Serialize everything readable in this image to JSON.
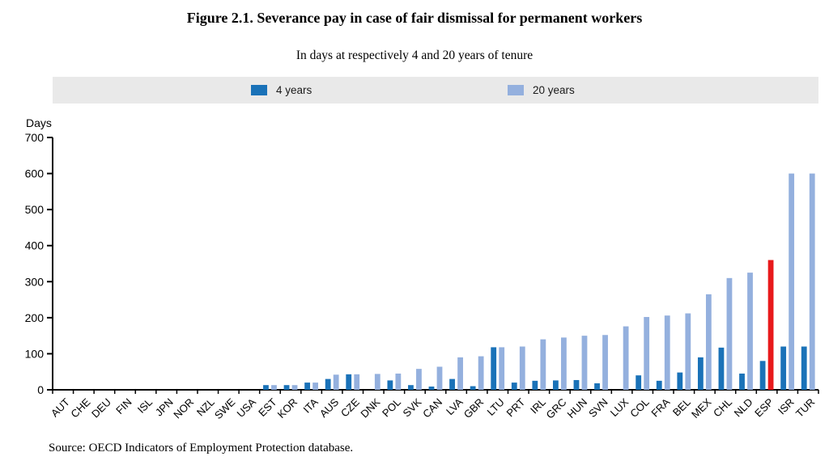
{
  "title": "Figure 2.1. Severance pay in case of fair dismissal for permanent workers",
  "subtitle": "In days at respectively 4 and 20 years of tenure",
  "source": "Source: OECD Indicators of Employment Protection database.",
  "chart_data": {
    "type": "bar",
    "unit_label": "Days",
    "ylim": [
      0,
      700
    ],
    "ytick_step": 100,
    "grid": false,
    "legend_position": "top-band",
    "legend": [
      {
        "name": "4 years",
        "color": "#1a72b8"
      },
      {
        "name": "20 years",
        "color": "#94b0de"
      }
    ],
    "highlight": {
      "country": "ESP",
      "series": "20 years",
      "color": "#e81a1c"
    },
    "categories": [
      "AUT",
      "CHE",
      "DEU",
      "FIN",
      "ISL",
      "JPN",
      "NOR",
      "NZL",
      "SWE",
      "USA",
      "EST",
      "KOR",
      "ITA",
      "AUS",
      "CZE",
      "DNK",
      "POL",
      "SVK",
      "CAN",
      "LVA",
      "GBR",
      "LTU",
      "PRT",
      "IRL",
      "GRC",
      "HUN",
      "SVN",
      "LUX",
      "COL",
      "FRA",
      "BEL",
      "MEX",
      "CHL",
      "NLD",
      "ESP",
      "ISR",
      "TUR"
    ],
    "series": [
      {
        "name": "4 years",
        "values": [
          0,
          0,
          0,
          0,
          0,
          0,
          0,
          0,
          0,
          0,
          13,
          13,
          20,
          30,
          43,
          0,
          26,
          13,
          9,
          30,
          10,
          118,
          20,
          25,
          26,
          27,
          18,
          0,
          40,
          25,
          48,
          90,
          117,
          45,
          80,
          120,
          120
        ]
      },
      {
        "name": "20 years",
        "values": [
          0,
          0,
          0,
          0,
          0,
          0,
          0,
          0,
          0,
          0,
          13,
          13,
          20,
          42,
          43,
          44,
          45,
          58,
          64,
          90,
          93,
          118,
          120,
          140,
          145,
          150,
          152,
          176,
          202,
          206,
          212,
          265,
          310,
          325,
          360,
          600,
          600
        ]
      }
    ]
  },
  "colors": {
    "axis": "#000000",
    "legend_band": "#e9e9e9",
    "text": "#000000"
  }
}
